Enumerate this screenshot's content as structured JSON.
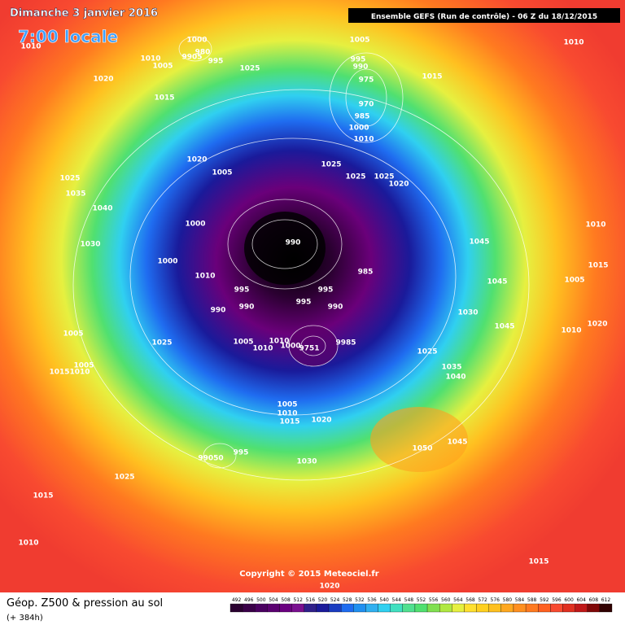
{
  "header": {
    "title": "Dimanche 3 janvier 2016",
    "subtitle": "7:00 locale",
    "run": "Ensemble GEFS  (Run de contrôle)  -  06 Z du 18/12/2015"
  },
  "footer": {
    "title": "Géop. Z500 & pression au sol",
    "subtitle": "(+ 384h)",
    "copyright": "Copyright © 2015 Meteociel.fr"
  },
  "scale": {
    "labels": [
      "492",
      "496",
      "500",
      "504",
      "508",
      "512",
      "516",
      "520",
      "524",
      "528",
      "532",
      "536",
      "540",
      "544",
      "548",
      "552",
      "556",
      "560",
      "564",
      "568",
      "572",
      "576",
      "580",
      "584",
      "588",
      "592",
      "596",
      "600",
      "604",
      "608",
      "612"
    ]
  },
  "pressure_labels": [
    "1010",
    "1000",
    "980",
    "9905",
    "995",
    "1010",
    "1005",
    "1025",
    "1005",
    "1010",
    "995",
    "990",
    "975",
    "970",
    "985",
    "1000",
    "1010",
    "1015",
    "1020",
    "1015",
    "1020",
    "1005",
    "1025",
    "1025",
    "1025",
    "1020",
    "1025",
    "1035",
    "1040",
    "1000",
    "990",
    "1045",
    "1030",
    "1000",
    "1010",
    "985",
    "1010",
    "1015",
    "1005",
    "1045",
    "995",
    "995",
    "990",
    "990",
    "995",
    "990",
    "1030",
    "1020",
    "1045",
    "1010",
    "1005",
    "1025",
    "1005",
    "1010",
    "1010",
    "1000",
    "9751",
    "9985",
    "1025",
    "1035",
    "1040",
    "1005",
    "1015",
    "1010",
    "1005",
    "1010",
    "1015",
    "1020",
    "1050",
    "1045",
    "99050",
    "995",
    "1030",
    "1025",
    "1015",
    "1010",
    "1015",
    "1020"
  ]
}
